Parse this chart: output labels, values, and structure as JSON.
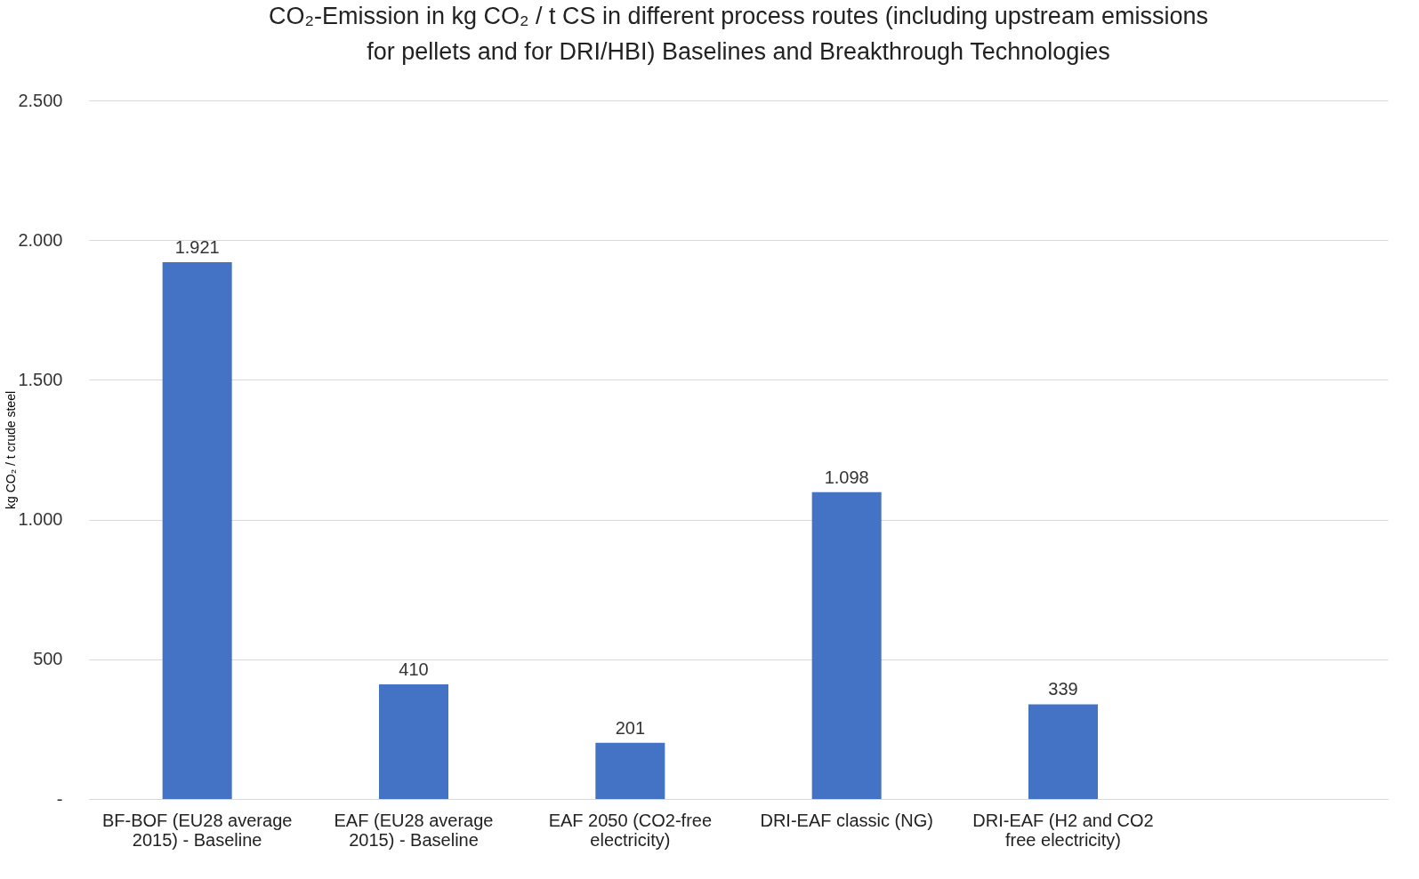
{
  "chart_data": {
    "type": "bar",
    "title": "CO₂-Emission in kg CO₂ / t CS in different process routes (including upstream emissions\nfor pellets and for DRI/HBI)  Baselines and Breakthrough Technologies",
    "ylabel": "kg CO₂ / t crude steel",
    "categories": [
      "BF-BOF (EU28 average 2015) - Baseline",
      "EAF (EU28 average 2015) - Baseline",
      "EAF 2050 (CO2-free electricity)",
      "DRI-EAF classic (NG)",
      "DRI-EAF (H2 and CO2 free electricity)",
      null
    ],
    "values": [
      1921,
      410,
      201,
      1098,
      339,
      null
    ],
    "value_labels": [
      "1.921",
      "410",
      "201",
      "1.098",
      "339",
      null
    ],
    "color": "#4472c4",
    "ylim": [
      0,
      2500
    ],
    "yticks": [
      {
        "value": 0,
        "label": "-"
      },
      {
        "value": 500,
        "label": "500"
      },
      {
        "value": 1000,
        "label": "1.000"
      },
      {
        "value": 1500,
        "label": "1.500"
      },
      {
        "value": 2000,
        "label": "2.000"
      },
      {
        "value": 2500,
        "label": "2.500"
      }
    ],
    "grid": "y"
  }
}
